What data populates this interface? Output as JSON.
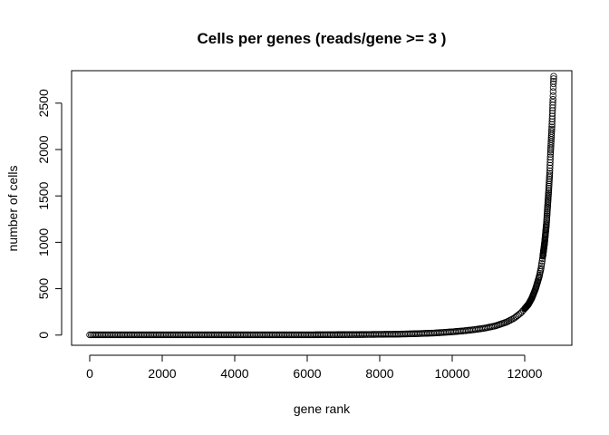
{
  "chart_data": {
    "type": "scatter",
    "title": "Cells per genes (reads/gene >= 3 )",
    "xlabel": "gene rank",
    "ylabel": "number of cells",
    "xlim": [
      -500,
      13300
    ],
    "ylim": [
      -110,
      2850
    ],
    "xticks": [
      0,
      2000,
      4000,
      6000,
      8000,
      10000,
      12000
    ],
    "xtick_labels": [
      "0",
      "2000",
      "4000",
      "6000",
      "8000",
      "10000",
      "12000"
    ],
    "yticks": [
      0,
      500,
      1000,
      1500,
      2000,
      2500
    ],
    "ytick_labels": [
      "0",
      "500",
      "1000",
      "1500",
      "2000",
      "2500"
    ],
    "grid": false,
    "legend": "none",
    "marker": "open-circle",
    "series": [
      {
        "x": [
          0,
          500,
          1000,
          1500,
          2000,
          2500,
          3000,
          3500,
          4000,
          4500,
          5000,
          5500,
          6000,
          6500,
          7000,
          7500,
          8000,
          8500,
          9000,
          9500,
          10000,
          10300,
          10600,
          10900,
          11200,
          11500,
          11700,
          11900,
          12100,
          12200,
          12300,
          12400,
          12450,
          12500,
          12550,
          12600,
          12630,
          12660,
          12690,
          12710,
          12730,
          12750,
          12760,
          12770,
          12780,
          12790,
          12800
        ],
        "values": [
          3,
          3,
          3,
          3,
          3,
          3,
          3,
          3,
          3,
          3,
          3,
          3,
          3,
          4,
          5,
          6,
          8,
          10,
          15,
          22,
          35,
          45,
          58,
          75,
          100,
          140,
          180,
          240,
          330,
          400,
          500,
          630,
          720,
          850,
          1000,
          1200,
          1380,
          1550,
          1750,
          1950,
          2100,
          2250,
          2350,
          2450,
          2550,
          2700,
          2790
        ]
      }
    ]
  }
}
